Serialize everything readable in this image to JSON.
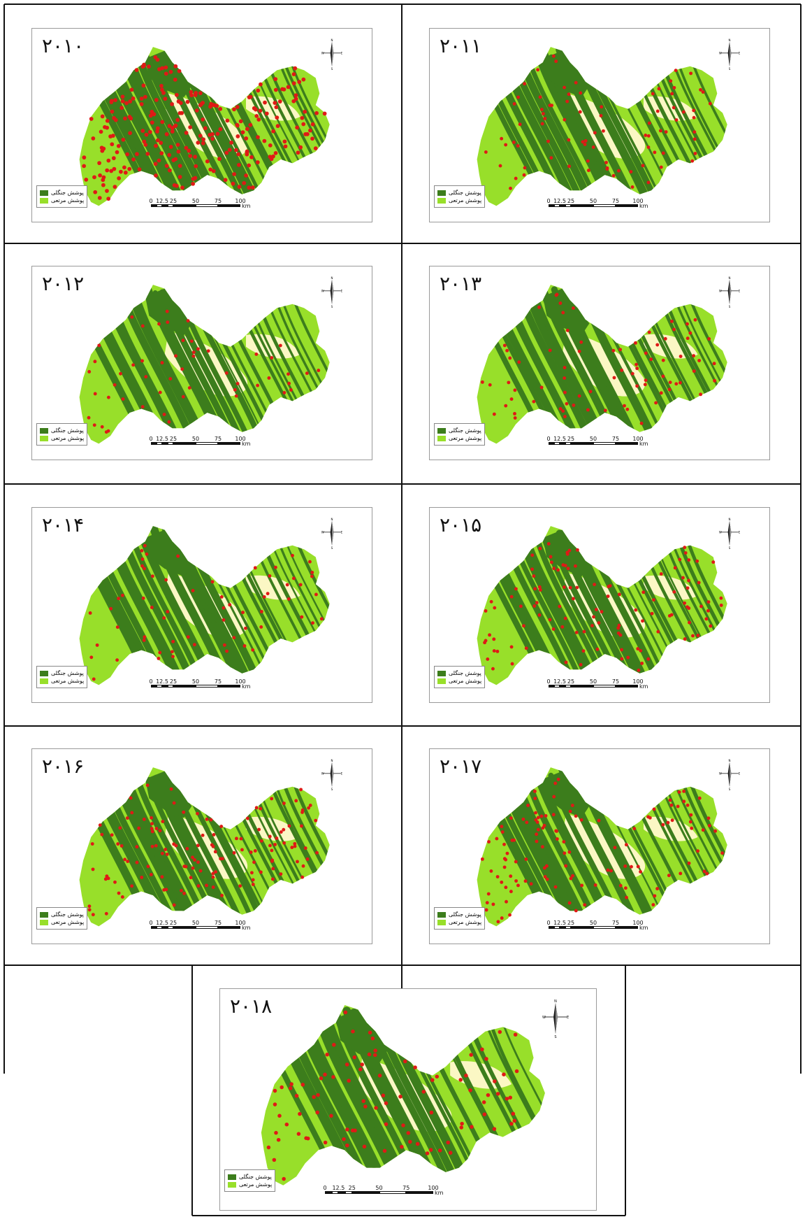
{
  "colors": {
    "forest": "#3c7d1c",
    "rangeland": "#98df2a",
    "barren": "#fbf7c4",
    "fire": "#df1a16",
    "grid_line": "#111111"
  },
  "legend": {
    "forest_label": "پوشش جنگلی",
    "range_label": "پوشش مرتعی"
  },
  "scale_bar": {
    "ticks": [
      "0",
      "12.5",
      "25",
      "50",
      "75",
      "100"
    ],
    "unit": "km"
  },
  "compass": {
    "n": "N",
    "s": "S",
    "e": "E",
    "w": "W",
    "icon": "north-arrow-icon"
  },
  "panels": [
    {
      "year": "۲۰۱۰",
      "fire_density": 1.0
    },
    {
      "year": "۲۰۱۱",
      "fire_density": 0.3
    },
    {
      "year": "۲۰۱۲",
      "fire_density": 0.18
    },
    {
      "year": "۲۰۱۳",
      "fire_density": 0.28
    },
    {
      "year": "۲۰۱۴",
      "fire_density": 0.22
    },
    {
      "year": "۲۰۱۵",
      "fire_density": 0.42
    },
    {
      "year": "۲۰۱۶",
      "fire_density": 0.5
    },
    {
      "year": "۲۰۱۷",
      "fire_density": 0.45
    },
    {
      "year": "۲۰۱۸",
      "fire_density": 0.35
    }
  ]
}
